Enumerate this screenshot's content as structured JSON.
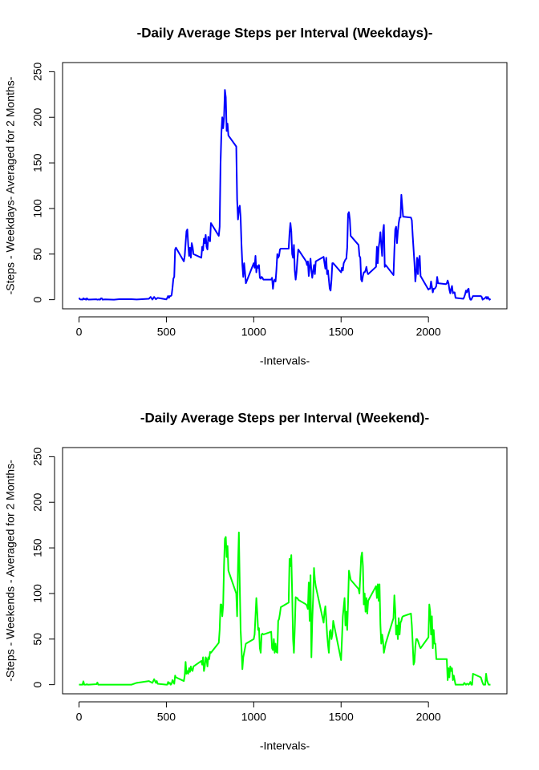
{
  "chart_data": [
    {
      "type": "line",
      "title": "-Daily Average Steps per Interval (Weekdays)-",
      "xlabel": "-Intervals-",
      "ylabel": "-Steps - Weekdays- Averaged for 2 Months-",
      "color": "#0000ff",
      "x": [
        0,
        5,
        10,
        15,
        20,
        25,
        30,
        35,
        40,
        45,
        50,
        55,
        100,
        105,
        110,
        115,
        120,
        125,
        130,
        135,
        140,
        150,
        200,
        230,
        300,
        330,
        400,
        410,
        420,
        430,
        440,
        450,
        500,
        505,
        510,
        515,
        520,
        525,
        530,
        535,
        540,
        545,
        550,
        555,
        600,
        605,
        610,
        615,
        620,
        625,
        630,
        635,
        640,
        645,
        650,
        655,
        700,
        705,
        710,
        715,
        720,
        725,
        730,
        735,
        740,
        745,
        750,
        755,
        800,
        805,
        810,
        815,
        820,
        825,
        830,
        835,
        840,
        845,
        850,
        855,
        900,
        905,
        910,
        915,
        920,
        925,
        930,
        935,
        940,
        945,
        950,
        955,
        1000,
        1005,
        1010,
        1015,
        1020,
        1025,
        1030,
        1035,
        1040,
        1045,
        1050,
        1055,
        1100,
        1105,
        1110,
        1115,
        1120,
        1125,
        1130,
        1135,
        1140,
        1145,
        1150,
        1155,
        1200,
        1205,
        1210,
        1215,
        1220,
        1225,
        1230,
        1235,
        1240,
        1245,
        1250,
        1255,
        1300,
        1305,
        1310,
        1315,
        1320,
        1325,
        1330,
        1335,
        1340,
        1345,
        1350,
        1355,
        1400,
        1405,
        1410,
        1415,
        1420,
        1425,
        1430,
        1435,
        1440,
        1445,
        1450,
        1455,
        1500,
        1505,
        1510,
        1515,
        1520,
        1525,
        1530,
        1535,
        1540,
        1545,
        1550,
        1555,
        1600,
        1605,
        1610,
        1615,
        1620,
        1625,
        1630,
        1635,
        1640,
        1645,
        1650,
        1655,
        1700,
        1705,
        1710,
        1715,
        1720,
        1725,
        1730,
        1735,
        1740,
        1745,
        1750,
        1755,
        1800,
        1805,
        1810,
        1815,
        1820,
        1825,
        1830,
        1835,
        1840,
        1845,
        1850,
        1855,
        1900,
        1905,
        1910,
        1915,
        1920,
        1925,
        1930,
        1935,
        1940,
        1945,
        1950,
        1955,
        2000,
        2005,
        2010,
        2015,
        2020,
        2025,
        2030,
        2035,
        2040,
        2045,
        2050,
        2055,
        2100,
        2105,
        2110,
        2115,
        2120,
        2125,
        2130,
        2135,
        2140,
        2145,
        2150,
        2155,
        2200,
        2205,
        2210,
        2215,
        2220,
        2225,
        2230,
        2235,
        2240,
        2245,
        2250,
        2255,
        2300,
        2305,
        2310,
        2315,
        2320,
        2325,
        2330,
        2335,
        2340,
        2345,
        2350,
        2355
      ],
      "values": [
        2,
        0.5,
        0.2,
        0.2,
        0.1,
        1.5,
        0.5,
        0.9,
        0,
        1.5,
        0.4,
        0.1,
        0.4,
        0,
        0.2,
        0.3,
        0,
        1.3,
        1.5,
        0,
        0.2,
        0.3,
        0,
        0.6,
        0.5,
        0.2,
        1,
        3,
        0.2,
        3,
        0.5,
        2,
        0.3,
        2,
        4,
        2,
        4,
        4,
        5,
        13,
        23,
        25,
        55,
        57,
        42,
        48,
        62,
        75,
        77,
        60,
        48,
        57,
        46,
        62,
        58,
        50,
        46,
        58,
        54,
        67,
        62,
        71,
        58,
        55,
        69,
        66,
        64,
        84,
        70,
        80,
        149,
        183,
        200,
        188,
        199,
        230,
        222,
        185,
        193,
        180,
        168,
        110,
        88,
        100,
        103,
        90,
        60,
        38,
        25,
        40,
        30,
        18,
        40,
        35,
        48,
        30,
        37,
        35,
        38,
        24,
        23,
        25,
        24,
        22,
        22,
        24,
        12,
        20,
        22,
        20,
        33,
        50,
        46,
        48,
        55,
        56,
        56,
        73,
        84,
        75,
        50,
        46,
        60,
        32,
        22,
        30,
        44,
        55,
        42,
        38,
        42,
        26,
        36,
        45,
        32,
        24,
        32,
        38,
        28,
        42,
        47,
        40,
        34,
        46,
        28,
        32,
        22,
        12,
        10,
        22,
        40,
        40,
        30,
        35,
        32,
        40,
        42,
        44,
        45,
        57,
        94,
        96,
        88,
        70,
        60,
        48,
        46,
        22,
        20,
        26,
        30,
        30,
        32,
        36,
        30,
        28,
        36,
        58,
        40,
        57,
        64,
        74,
        60,
        48,
        75,
        82,
        36,
        38,
        27,
        54,
        77,
        80,
        62,
        75,
        84,
        90,
        90,
        115,
        103,
        91,
        90,
        87,
        70,
        55,
        40,
        20,
        30,
        46,
        28,
        44,
        48,
        26,
        11,
        12,
        12,
        20,
        14,
        8,
        12,
        12,
        13,
        15,
        25,
        18,
        17,
        18,
        21,
        18,
        11,
        7,
        12,
        15,
        7,
        8,
        8,
        2,
        1,
        3,
        6,
        10,
        8,
        11,
        12,
        3,
        0,
        0,
        2,
        4,
        4,
        3,
        0,
        1,
        1,
        2,
        3,
        1,
        3,
        1,
        0,
        1
      ],
      "xlim": [
        -94.2,
        2449.2
      ],
      "ylim": [
        -10,
        260
      ],
      "xticks": [
        0,
        500,
        1000,
        1500,
        2000
      ],
      "yticks": [
        0,
        50,
        100,
        150,
        200,
        250
      ]
    },
    {
      "type": "line",
      "title": "-Daily Average Steps per Interval (Weekend)-",
      "xlabel": "-Intervals-",
      "ylabel": "-Steps - Weekends - Averaged for 2 Months-",
      "color": "#00ff00",
      "x": [
        0,
        5,
        10,
        15,
        20,
        25,
        30,
        35,
        40,
        45,
        50,
        55,
        100,
        105,
        110,
        115,
        120,
        200,
        300,
        330,
        400,
        420,
        430,
        440,
        445,
        450,
        500,
        505,
        510,
        515,
        520,
        525,
        530,
        535,
        540,
        545,
        550,
        555,
        600,
        605,
        610,
        615,
        620,
        625,
        630,
        635,
        640,
        645,
        650,
        655,
        700,
        705,
        710,
        715,
        720,
        725,
        730,
        735,
        740,
        745,
        750,
        755,
        800,
        805,
        810,
        815,
        820,
        825,
        830,
        835,
        840,
        845,
        850,
        855,
        900,
        905,
        910,
        915,
        920,
        925,
        930,
        935,
        940,
        945,
        950,
        955,
        1000,
        1005,
        1010,
        1015,
        1020,
        1025,
        1030,
        1035,
        1040,
        1045,
        1050,
        1055,
        1100,
        1105,
        1110,
        1115,
        1120,
        1125,
        1130,
        1135,
        1140,
        1145,
        1150,
        1155,
        1200,
        1205,
        1210,
        1215,
        1220,
        1225,
        1230,
        1235,
        1240,
        1245,
        1250,
        1255,
        1300,
        1305,
        1310,
        1315,
        1320,
        1325,
        1330,
        1335,
        1340,
        1345,
        1350,
        1355,
        1400,
        1405,
        1410,
        1415,
        1420,
        1425,
        1430,
        1435,
        1440,
        1445,
        1450,
        1455,
        1500,
        1505,
        1510,
        1515,
        1520,
        1525,
        1530,
        1535,
        1540,
        1545,
        1550,
        1555,
        1600,
        1605,
        1610,
        1615,
        1620,
        1625,
        1630,
        1635,
        1640,
        1645,
        1650,
        1655,
        1700,
        1705,
        1710,
        1715,
        1720,
        1725,
        1730,
        1735,
        1740,
        1745,
        1750,
        1755,
        1800,
        1805,
        1810,
        1815,
        1820,
        1825,
        1830,
        1835,
        1840,
        1845,
        1850,
        1855,
        1900,
        1905,
        1910,
        1915,
        1920,
        1925,
        1930,
        1935,
        1940,
        1945,
        1950,
        1955,
        2000,
        2005,
        2010,
        2015,
        2020,
        2025,
        2030,
        2035,
        2040,
        2045,
        2050,
        2055,
        2100,
        2105,
        2110,
        2115,
        2120,
        2125,
        2130,
        2135,
        2140,
        2145,
        2150,
        2155,
        2200,
        2205,
        2210,
        2215,
        2220,
        2225,
        2230,
        2235,
        2240,
        2245,
        2250,
        2255,
        2300,
        2305,
        2310,
        2315,
        2320,
        2325,
        2330,
        2335,
        2340,
        2345,
        2350,
        2355
      ],
      "values": [
        0.2,
        0,
        0,
        0,
        0,
        3.7,
        0,
        0,
        0,
        0.5,
        0,
        0,
        0.5,
        2.4,
        0,
        0,
        0,
        0,
        0,
        2,
        4,
        2,
        6,
        2,
        4,
        1,
        0,
        0,
        3,
        1,
        2,
        0,
        1,
        5,
        3,
        1,
        10,
        8,
        4,
        10,
        25,
        12,
        15,
        12,
        18,
        14,
        20,
        16,
        15,
        20,
        26,
        22,
        30,
        15,
        20,
        30,
        28,
        20,
        30,
        28,
        36,
        35,
        46,
        60,
        88,
        88,
        75,
        87,
        131,
        160,
        162,
        140,
        152,
        125,
        100,
        75,
        130,
        167,
        110,
        60,
        40,
        17,
        30,
        35,
        40,
        45,
        50,
        55,
        75,
        95,
        80,
        60,
        62,
        40,
        35,
        55,
        56,
        55,
        58,
        40,
        38,
        50,
        35,
        45,
        36,
        35,
        70,
        72,
        78,
        85,
        90,
        138,
        130,
        142,
        100,
        50,
        35,
        62,
        96,
        95,
        95,
        93,
        88,
        86,
        83,
        112,
        70,
        120,
        30,
        70,
        95,
        128,
        115,
        108,
        68,
        80,
        86,
        72,
        55,
        44,
        35,
        58,
        60,
        50,
        55,
        70,
        27,
        50,
        75,
        85,
        95,
        65,
        80,
        60,
        90,
        125,
        120,
        115,
        105,
        100,
        120,
        140,
        145,
        130,
        88,
        100,
        80,
        95,
        78,
        92,
        108,
        95,
        110,
        92,
        110,
        66,
        45,
        55,
        48,
        35,
        40,
        45,
        73,
        98,
        82,
        55,
        65,
        50,
        73,
        55,
        68,
        70,
        74,
        75,
        78,
        65,
        45,
        22,
        25,
        42,
        50,
        50,
        48,
        45,
        42,
        40,
        52,
        88,
        80,
        55,
        75,
        40,
        60,
        45,
        45,
        28,
        28,
        28,
        28,
        28,
        5,
        18,
        8,
        20,
        15,
        18,
        5,
        10,
        5,
        0,
        0,
        2,
        1,
        0,
        1,
        1,
        0,
        1,
        3,
        0,
        0,
        12,
        8,
        5,
        2,
        0,
        0,
        0,
        12,
        5,
        2,
        0,
        0,
        0
      ],
      "xlim": [
        -94.2,
        2449.2
      ],
      "ylim": [
        -10,
        260
      ],
      "xticks": [
        0,
        500,
        1000,
        1500,
        2000
      ],
      "yticks": [
        0,
        50,
        100,
        150,
        200,
        250
      ]
    }
  ]
}
